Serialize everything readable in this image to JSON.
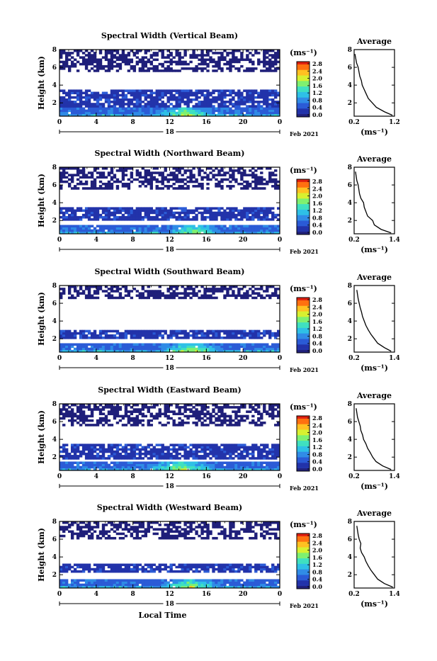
{
  "figure": {
    "xlabel": "Local Time",
    "date_label": "Feb 2021",
    "day_label": "18",
    "colorbar_unit": "(ms⁻¹)",
    "colorbar_ticks": [
      "2.8",
      "2.4",
      "2.0",
      "1.6",
      "1.2",
      "0.8",
      "0.4",
      "0.0"
    ],
    "colormap": [
      "#ffffff",
      "#1f1f7a",
      "#2233aa",
      "#2b5bd6",
      "#2f8be6",
      "#2fc0e6",
      "#3fe0c0",
      "#7ff070",
      "#d8f030",
      "#ffc020",
      "#ff7010",
      "#e02010"
    ],
    "avg_title": "Average"
  },
  "chart_data": [
    {
      "type": "heatmap",
      "title": "Spectral Width (Vertical Beam)",
      "xlabel": "",
      "ylabel": "Height (km)",
      "x_ticks": [
        "0",
        "4",
        "8",
        "12",
        "16",
        "20",
        "0"
      ],
      "y_ticks": [
        "8",
        "6",
        "4",
        "2"
      ],
      "xlim": [
        0,
        24
      ],
      "ylim": [
        0.5,
        8
      ],
      "zlim": [
        0.0,
        2.8
      ],
      "layers": [
        {
          "from": 0.5,
          "to": 0.8,
          "value": 1.0
        },
        {
          "from": 0.8,
          "to": 1.5,
          "value": 0.6
        },
        {
          "from": 1.5,
          "to": 3.5,
          "value": 0.35
        },
        {
          "from": 5.5,
          "to": 8.0,
          "value": 0.1
        }
      ],
      "peak": {
        "t_start": 10.5,
        "t_end": 17.0,
        "h_top": 1.6,
        "value": 2.2
      },
      "average": {
        "title": "Average",
        "xlabel": "(ms⁻¹)",
        "x_ticks": [
          "0.2",
          "1.2"
        ],
        "xlim": [
          0.2,
          1.2
        ],
        "y_ticks": [
          "8",
          "6",
          "4",
          "2"
        ],
        "ylim": [
          0.5,
          8
        ],
        "height": [
          0.6,
          1.0,
          1.5,
          2.0,
          2.5,
          3.0,
          3.5,
          4.0,
          4.5,
          5.0,
          5.5,
          6.0,
          6.5,
          7.0,
          7.5
        ],
        "value": [
          1.15,
          0.95,
          0.75,
          0.65,
          0.55,
          0.5,
          0.45,
          0.4,
          0.38,
          0.34,
          0.32,
          0.3,
          0.26,
          0.24,
          0.22
        ]
      }
    },
    {
      "type": "heatmap",
      "title": "Spectral Width (Northward Beam)",
      "xlabel": "",
      "ylabel": "Height (km)",
      "x_ticks": [
        "0",
        "4",
        "8",
        "12",
        "16",
        "20",
        "0"
      ],
      "y_ticks": [
        "8",
        "6",
        "4",
        "2"
      ],
      "xlim": [
        0,
        24
      ],
      "ylim": [
        0.5,
        8
      ],
      "zlim": [
        0.0,
        2.8
      ],
      "layers": [
        {
          "from": 0.5,
          "to": 0.8,
          "value": 1.0
        },
        {
          "from": 0.8,
          "to": 1.6,
          "value": 0.6
        },
        {
          "from": 2.0,
          "to": 3.6,
          "value": 0.35
        },
        {
          "from": 5.5,
          "to": 8.0,
          "value": 0.1
        }
      ],
      "peak": {
        "t_start": 12.0,
        "t_end": 17.5,
        "h_top": 1.7,
        "value": 2.2
      },
      "average": {
        "title": "Average",
        "xlabel": "(ms⁻¹)",
        "x_ticks": [
          "0.2",
          "1.4"
        ],
        "xlim": [
          0.2,
          1.4
        ],
        "y_ticks": [
          "8",
          "6",
          "4",
          "2"
        ],
        "ylim": [
          0.5,
          8
        ],
        "height": [
          0.6,
          1.0,
          1.5,
          2.0,
          2.5,
          3.0,
          3.5,
          4.0,
          4.5,
          5.0,
          5.5,
          6.0,
          6.5,
          7.0,
          7.5
        ],
        "value": [
          1.3,
          1.0,
          0.8,
          0.75,
          0.6,
          0.55,
          0.5,
          0.48,
          0.4,
          0.36,
          0.34,
          0.32,
          0.28,
          0.26,
          0.24
        ]
      }
    },
    {
      "type": "heatmap",
      "title": "Spectral Width (Southward Beam)",
      "xlabel": "",
      "ylabel": "Height (km)",
      "x_ticks": [
        "0",
        "4",
        "8",
        "12",
        "16",
        "20",
        "0"
      ],
      "y_ticks": [
        "8",
        "6",
        "4",
        "2"
      ],
      "xlim": [
        0,
        24
      ],
      "ylim": [
        0.5,
        8
      ],
      "zlim": [
        0.0,
        2.8
      ],
      "layers": [
        {
          "from": 0.5,
          "to": 0.8,
          "value": 1.0
        },
        {
          "from": 0.8,
          "to": 1.6,
          "value": 0.6
        },
        {
          "from": 2.0,
          "to": 3.0,
          "value": 0.35
        },
        {
          "from": 6.5,
          "to": 8.0,
          "value": 0.1
        }
      ],
      "peak": {
        "t_start": 11.0,
        "t_end": 17.5,
        "h_top": 1.6,
        "value": 2.3
      },
      "average": {
        "title": "Average",
        "xlabel": "(ms⁻¹)",
        "x_ticks": [
          "0.2",
          "1.4"
        ],
        "xlim": [
          0.2,
          1.4
        ],
        "y_ticks": [
          "8",
          "6",
          "4",
          "2"
        ],
        "ylim": [
          0.5,
          8
        ],
        "height": [
          0.6,
          1.0,
          1.5,
          2.0,
          2.5,
          3.0,
          3.5,
          4.0,
          4.5,
          5.0,
          5.5,
          6.0,
          6.5,
          7.0,
          7.5
        ],
        "value": [
          1.3,
          1.1,
          0.9,
          0.8,
          0.7,
          0.62,
          0.55,
          0.5,
          0.45,
          0.42,
          0.38,
          0.35,
          0.32,
          0.3,
          0.28
        ]
      }
    },
    {
      "type": "heatmap",
      "title": "Spectral Width (Eastward Beam)",
      "xlabel": "",
      "ylabel": "Height (km)",
      "x_ticks": [
        "0",
        "4",
        "8",
        "12",
        "16",
        "20",
        "0"
      ],
      "y_ticks": [
        "8",
        "6",
        "4",
        "2"
      ],
      "xlim": [
        0,
        24
      ],
      "ylim": [
        0.5,
        8
      ],
      "zlim": [
        0.0,
        2.8
      ],
      "layers": [
        {
          "from": 0.5,
          "to": 0.8,
          "value": 1.0
        },
        {
          "from": 0.8,
          "to": 1.6,
          "value": 0.6
        },
        {
          "from": 1.8,
          "to": 3.6,
          "value": 0.35
        },
        {
          "from": 5.5,
          "to": 8.0,
          "value": 0.1
        }
      ],
      "peak": {
        "t_start": 9.5,
        "t_end": 17.0,
        "h_top": 1.8,
        "value": 2.1
      },
      "average": {
        "title": "Average",
        "xlabel": "(ms⁻¹)",
        "x_ticks": [
          "0.2",
          "1.4"
        ],
        "xlim": [
          0.2,
          1.4
        ],
        "y_ticks": [
          "8",
          "6",
          "4",
          "2"
        ],
        "ylim": [
          0.5,
          8
        ],
        "height": [
          0.6,
          1.0,
          1.5,
          2.0,
          2.5,
          3.0,
          3.5,
          4.0,
          4.5,
          5.0,
          5.5,
          6.0,
          6.5,
          7.0,
          7.5
        ],
        "value": [
          1.3,
          1.05,
          0.85,
          0.75,
          0.68,
          0.6,
          0.55,
          0.48,
          0.45,
          0.4,
          0.38,
          0.34,
          0.3,
          0.28,
          0.26
        ]
      }
    },
    {
      "type": "heatmap",
      "title": "Spectral Width (Westward Beam)",
      "xlabel": "Local Time",
      "ylabel": "Height (km)",
      "x_ticks": [
        "0",
        "4",
        "8",
        "12",
        "16",
        "20",
        "0"
      ],
      "y_ticks": [
        "8",
        "6",
        "4",
        "2"
      ],
      "xlim": [
        0,
        24
      ],
      "ylim": [
        0.5,
        8
      ],
      "zlim": [
        0.0,
        2.8
      ],
      "layers": [
        {
          "from": 0.5,
          "to": 0.8,
          "value": 1.0
        },
        {
          "from": 0.8,
          "to": 1.6,
          "value": 0.6
        },
        {
          "from": 2.3,
          "to": 3.3,
          "value": 0.35
        },
        {
          "from": 6.0,
          "to": 8.0,
          "value": 0.1
        }
      ],
      "peak": {
        "t_start": 11.0,
        "t_end": 17.5,
        "h_top": 1.5,
        "value": 2.3
      },
      "average": {
        "title": "Average",
        "xlabel": "(ms⁻¹)",
        "x_ticks": [
          "0.2",
          "1.4"
        ],
        "xlim": [
          0.2,
          1.4
        ],
        "y_ticks": [
          "8",
          "6",
          "4",
          "2"
        ],
        "ylim": [
          0.5,
          8
        ],
        "height": [
          0.6,
          1.0,
          1.5,
          2.0,
          2.5,
          3.0,
          3.5,
          4.0,
          4.5,
          5.0,
          5.5,
          6.0,
          6.5,
          7.0,
          7.5
        ],
        "value": [
          1.35,
          1.1,
          0.9,
          0.8,
          0.7,
          0.62,
          0.55,
          0.5,
          0.42,
          0.38,
          0.4,
          0.35,
          0.32,
          0.3,
          0.28
        ]
      }
    }
  ]
}
